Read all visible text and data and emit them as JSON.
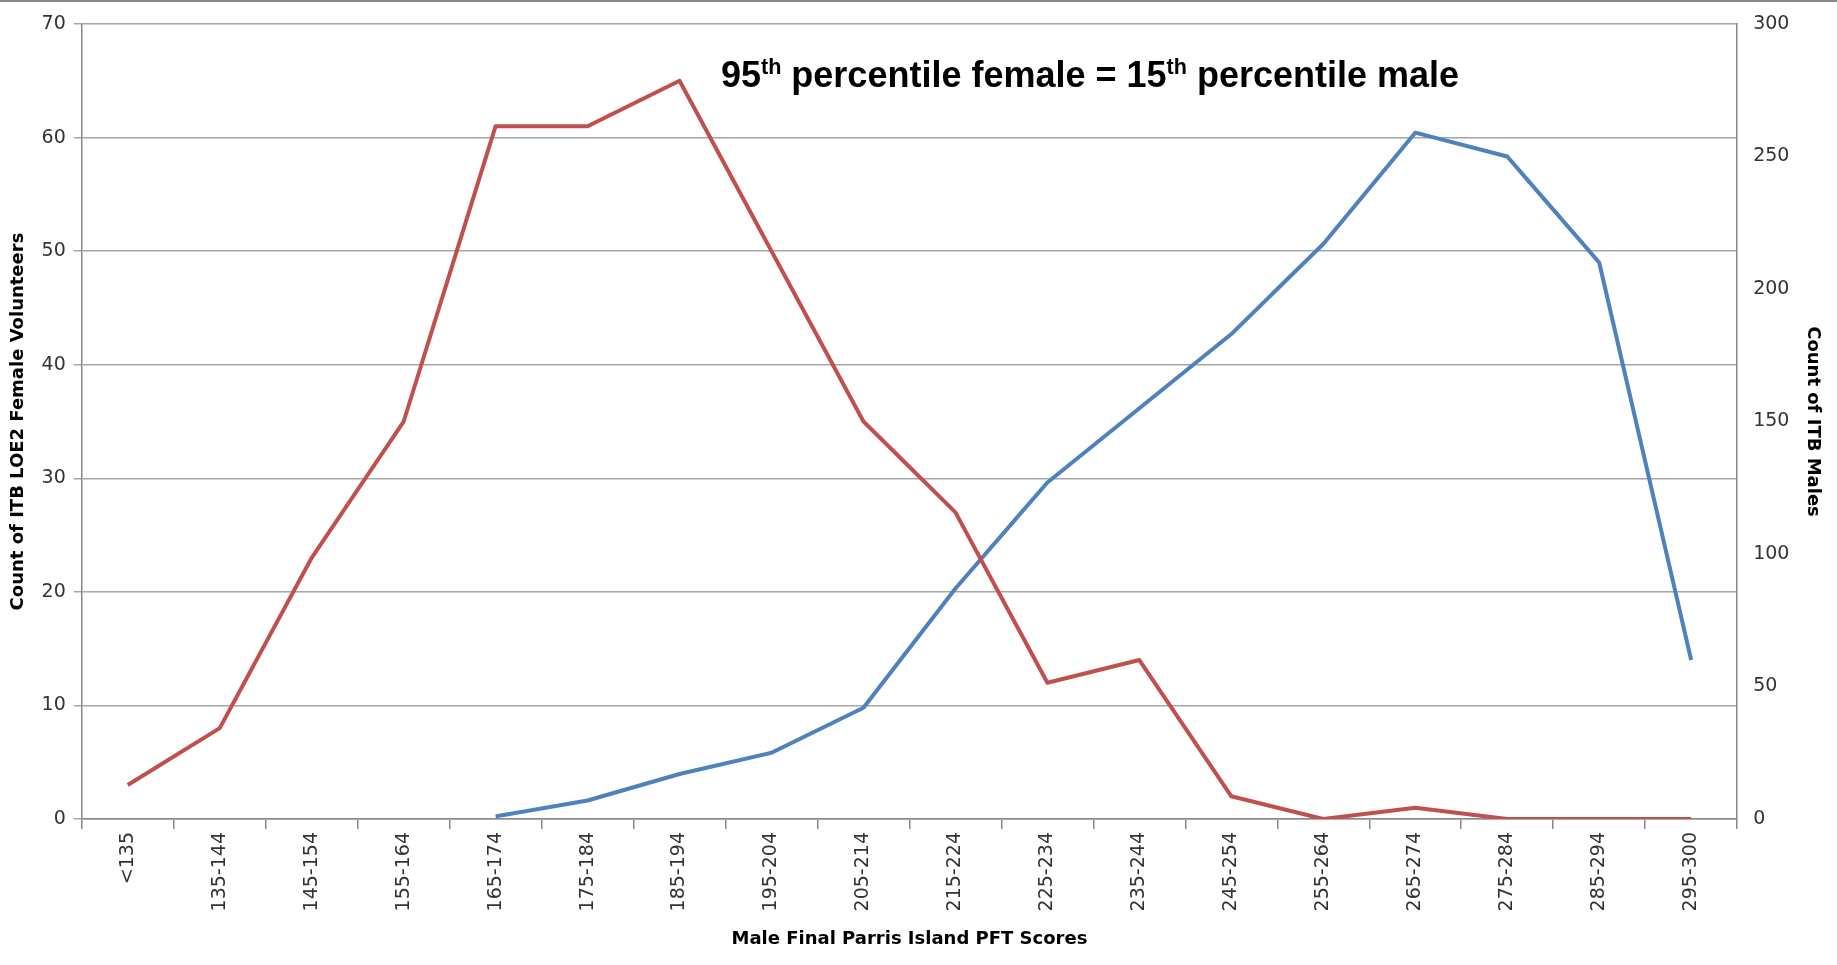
{
  "chart_data": {
    "type": "line",
    "xlabel": "Male Final Parris Island PFT Scores",
    "ylabel": "Count of ITB LOE2 Female Volunteers",
    "y2label": "Count of ITB Males",
    "categories": [
      "<135",
      "135-144",
      "145-154",
      "155-164",
      "165-174",
      "175-184",
      "185-194",
      "195-204",
      "205-214",
      "215-224",
      "225-234",
      "235-244",
      "245-254",
      "255-264",
      "265-274",
      "275-284",
      "285-294",
      "295-300"
    ],
    "series": [
      {
        "color": "#c0504d",
        "values": [
          3,
          8,
          23,
          35,
          61,
          61,
          65,
          50,
          35,
          27,
          12,
          14,
          2,
          0,
          1,
          0,
          0,
          0
        ]
      },
      {
        "color": "#4f81bd",
        "axis": "y2",
        "values": [
          null,
          null,
          null,
          null,
          1,
          7,
          17,
          25,
          42,
          87,
          127,
          155,
          183,
          217,
          259,
          250,
          210,
          60
        ]
      }
    ],
    "ylim": [
      0,
      70
    ],
    "yticks": [
      0,
      10,
      20,
      30,
      40,
      50,
      60,
      70
    ],
    "y2lim": [
      0,
      300
    ],
    "y2ticks": [
      0,
      50,
      100,
      150,
      200,
      250,
      300
    ],
    "grid": "y",
    "legend": false,
    "marker": "none",
    "line_style": "solid",
    "annotations": [
      "95$^{th}$ percentile female = 15$^{th}$ percentile male"
    ]
  }
}
